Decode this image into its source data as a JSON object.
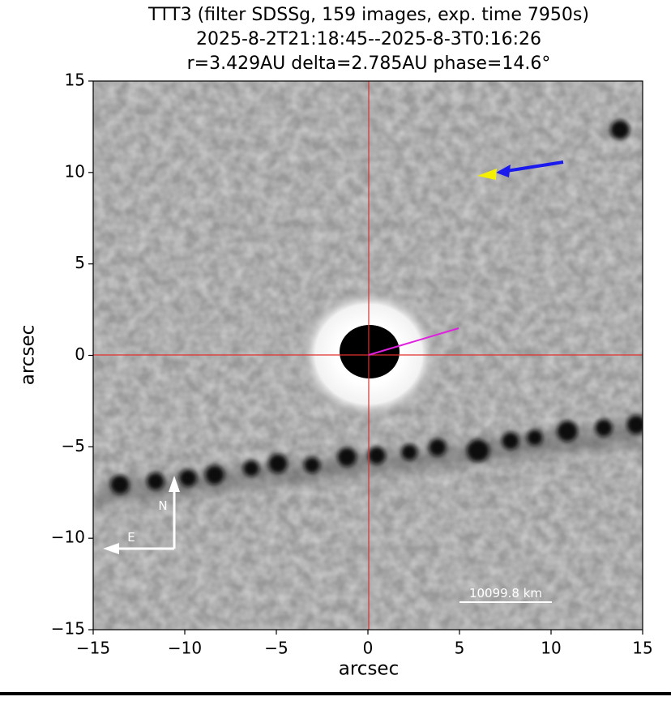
{
  "chart_data": {
    "type": "image",
    "title": [
      "TTT3 (filter SDSSg, 159 images, exp. time 7950s)",
      "2025-8-2T21:18:45--2025-8-3T0:16:26",
      "r=3.429AU delta=2.785AU phase=14.6°"
    ],
    "xlabel": "arcsec",
    "ylabel": "arcsec",
    "xlim": [
      -15,
      15
    ],
    "ylim": [
      -15,
      15
    ],
    "xticks": [
      {
        "value": -15,
        "label": "−15"
      },
      {
        "value": -10,
        "label": "−10"
      },
      {
        "value": -5,
        "label": "−5"
      },
      0,
      5,
      10,
      15
    ],
    "yticks": [
      {
        "value": -15,
        "label": "−15"
      },
      {
        "value": -10,
        "label": "−10"
      },
      {
        "value": -5,
        "label": "−5"
      },
      0,
      5,
      10,
      15
    ],
    "compass": {
      "north": "N",
      "east": "E"
    },
    "scale_bar": "10099.8 km"
  }
}
